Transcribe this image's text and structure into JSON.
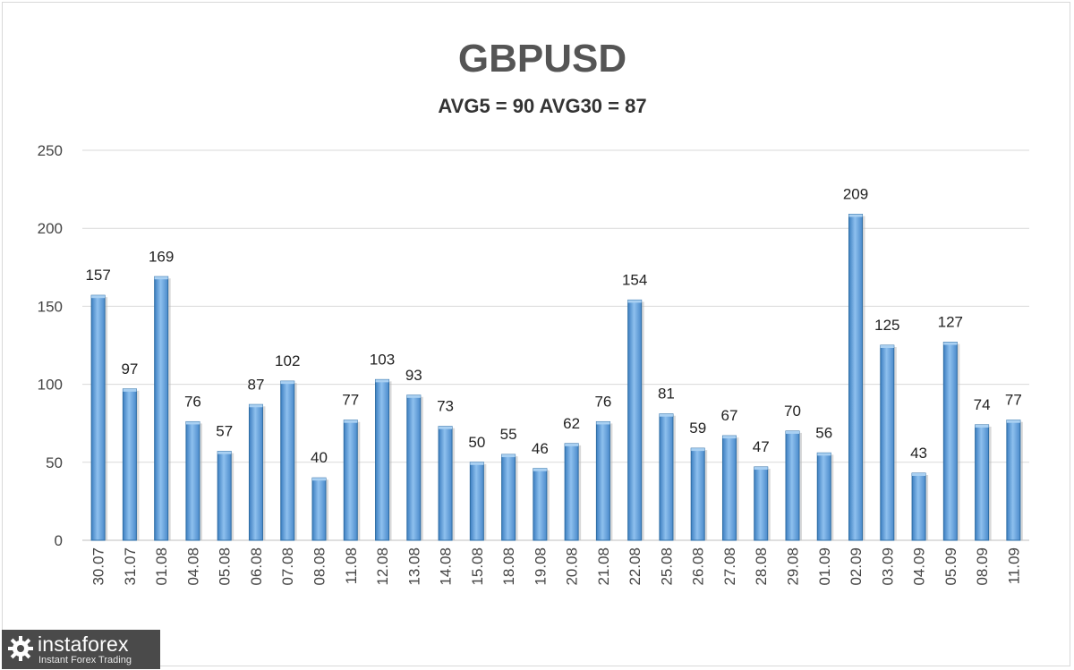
{
  "chart_data": {
    "type": "bar",
    "title": "GBPUSD",
    "subtitle": "AVG5 = 90 AVG30 = 87",
    "categories": [
      "30.07",
      "31.07",
      "01.08",
      "04.08",
      "05.08",
      "06.08",
      "07.08",
      "08.08",
      "11.08",
      "12.08",
      "13.08",
      "14.08",
      "15.08",
      "18.08",
      "19.08",
      "20.08",
      "21.08",
      "22.08",
      "25.08",
      "26.08",
      "27.08",
      "28.08",
      "29.08",
      "01.09",
      "02.09",
      "03.09",
      "04.09",
      "05.09",
      "08.09",
      "11.09"
    ],
    "values": [
      157,
      97,
      169,
      76,
      57,
      87,
      102,
      40,
      77,
      103,
      93,
      73,
      50,
      55,
      46,
      62,
      76,
      154,
      81,
      59,
      67,
      47,
      70,
      56,
      209,
      125,
      43,
      127,
      74,
      77
    ],
    "ylim": [
      0,
      250
    ],
    "yticks": [
      0,
      50,
      100,
      150,
      200,
      250
    ],
    "grid": true,
    "legend": "none",
    "bar_color": "#5b9bd5",
    "bar_edge_color": "#2e6da4"
  },
  "watermark": {
    "brand": "instaforex",
    "tagline": "Instant Forex Trading",
    "icon": "gear-logo-icon"
  }
}
